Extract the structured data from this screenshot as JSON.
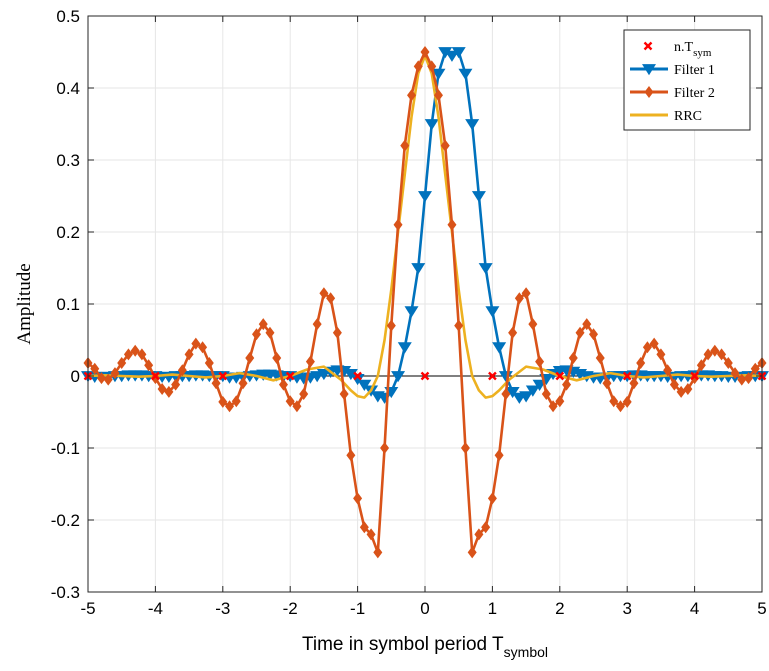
{
  "chart_data": {
    "type": "line",
    "xlabel": "Time in symbol period T",
    "xlabel_sub": "symbol",
    "ylabel": "Amplitude",
    "xlim": [
      -5,
      5
    ],
    "ylim": [
      -0.3,
      0.5
    ],
    "xticks": [
      -5,
      -4,
      -3,
      -2,
      -1,
      0,
      1,
      2,
      3,
      4,
      5
    ],
    "xtick_labels": [
      "-5",
      "-4",
      "-3",
      "-2",
      "-1",
      "0",
      "1",
      "2",
      "3",
      "4",
      "5"
    ],
    "yticks": [
      -0.3,
      -0.2,
      -0.1,
      0,
      0.1,
      0.2,
      0.3,
      0.4,
      0.5
    ],
    "ytick_labels": [
      "-0.3",
      "-0.2",
      "-0.1",
      "0",
      "0.1",
      "0.2",
      "0.3",
      "0.4",
      "0.5"
    ],
    "grid": true,
    "legend_position": "top-right",
    "legend": [
      {
        "label": "n.T",
        "sub": "sym",
        "color": "#ff0000",
        "marker": "x"
      },
      {
        "label": "Filter 1",
        "color": "#0072bd",
        "marker": "triangle-down"
      },
      {
        "label": "Filter 2",
        "color": "#d95319",
        "marker": "diamond"
      },
      {
        "label": "RRC",
        "color": "#edb120",
        "marker": "none"
      }
    ],
    "series": [
      {
        "name": "n.T_sym",
        "color": "#ff0000",
        "style": "markers",
        "marker": "x",
        "x": [
          -5,
          -4,
          -3,
          -2,
          -1,
          0,
          1,
          2,
          3,
          4,
          5
        ],
        "y": [
          0,
          0,
          0,
          0,
          0,
          0,
          0,
          0,
          0,
          0,
          0
        ]
      },
      {
        "name": "Filter 1",
        "color": "#0072bd",
        "style": "line+markers",
        "marker": "triangle-down",
        "x": [
          -5,
          -4.9,
          -4.8,
          -4.7,
          -4.6,
          -4.5,
          -4.4,
          -4.3,
          -4.2,
          -4.1,
          -4,
          -3.9,
          -3.8,
          -3.7,
          -3.6,
          -3.5,
          -3.4,
          -3.3,
          -3.2,
          -3.1,
          -3,
          -2.9,
          -2.8,
          -2.7,
          -2.6,
          -2.5,
          -2.4,
          -2.3,
          -2.2,
          -2.1,
          -2,
          -1.9,
          -1.8,
          -1.7,
          -1.6,
          -1.5,
          -1.4,
          -1.3,
          -1.2,
          -1.1,
          -1,
          -0.9,
          -0.8,
          -0.7,
          -0.6,
          -0.5,
          -0.4,
          -0.3,
          -0.2,
          -0.1,
          0,
          0.1,
          0.2,
          0.3,
          0.4,
          0.5,
          0.6,
          0.7,
          0.8,
          0.9,
          1,
          1.1,
          1.2,
          1.3,
          1.4,
          1.5,
          1.6,
          1.7,
          1.8,
          1.9,
          2,
          2.1,
          2.2,
          2.3,
          2.4,
          2.5,
          2.6,
          2.7,
          2.8,
          2.9,
          3,
          3.1,
          3.2,
          3.3,
          3.4,
          3.5,
          3.6,
          3.7,
          3.8,
          3.9,
          4,
          4.1,
          4.2,
          4.3,
          4.4,
          4.5,
          4.6,
          4.7,
          4.8,
          4.9,
          5
        ],
        "y": [
          0,
          -0.001,
          -0.001,
          -0.001,
          0,
          0,
          0.001,
          0.001,
          0.001,
          0,
          0,
          -0.001,
          -0.001,
          0,
          0,
          0,
          0.001,
          0.001,
          0,
          0,
          0,
          -0.002,
          -0.002,
          -0.001,
          0,
          0.001,
          0.002,
          0.002,
          0.001,
          0,
          0,
          -0.002,
          -0.003,
          -0.002,
          0,
          0.003,
          0.006,
          0.008,
          0.007,
          0.003,
          -0.004,
          -0.012,
          -0.02,
          -0.028,
          -0.03,
          -0.022,
          0,
          0.04,
          0.09,
          0.15,
          0.25,
          0.35,
          0.42,
          0.45,
          0.445,
          0.45,
          0.42,
          0.35,
          0.25,
          0.15,
          0.09,
          0.04,
          0,
          -0.022,
          -0.03,
          -0.028,
          -0.02,
          -0.012,
          -0.004,
          0.003,
          0.007,
          0.008,
          0.006,
          0.003,
          0,
          -0.002,
          -0.003,
          -0.002,
          0,
          0,
          0,
          0.001,
          0.001,
          0,
          0,
          0,
          -0.001,
          -0.001,
          0,
          0,
          0.001,
          0.001,
          0.001,
          0,
          0,
          -0.001,
          -0.001,
          -0.001,
          0,
          0,
          0
        ]
      },
      {
        "name": "Filter 2",
        "color": "#d95319",
        "style": "line+markers",
        "marker": "diamond",
        "x": [
          -5,
          -4.9,
          -4.8,
          -4.7,
          -4.6,
          -4.5,
          -4.4,
          -4.3,
          -4.2,
          -4.1,
          -4,
          -3.9,
          -3.8,
          -3.7,
          -3.6,
          -3.5,
          -3.4,
          -3.3,
          -3.2,
          -3.1,
          -3,
          -2.9,
          -2.8,
          -2.7,
          -2.6,
          -2.5,
          -2.4,
          -2.3,
          -2.2,
          -2.1,
          -2,
          -1.9,
          -1.8,
          -1.7,
          -1.6,
          -1.5,
          -1.4,
          -1.3,
          -1.2,
          -1.1,
          -1,
          -0.9,
          -0.8,
          -0.7,
          -0.6,
          -0.5,
          -0.4,
          -0.3,
          -0.2,
          -0.1,
          0,
          0.1,
          0.2,
          0.3,
          0.4,
          0.5,
          0.6,
          0.7,
          0.8,
          0.9,
          1,
          1.1,
          1.2,
          1.3,
          1.4,
          1.5,
          1.6,
          1.7,
          1.8,
          1.9,
          2,
          2.1,
          2.2,
          2.3,
          2.4,
          2.5,
          2.6,
          2.7,
          2.8,
          2.9,
          3,
          3.1,
          3.2,
          3.3,
          3.4,
          3.5,
          3.6,
          3.7,
          3.8,
          3.9,
          4,
          4.1,
          4.2,
          4.3,
          4.4,
          4.5,
          4.6,
          4.7,
          4.8,
          4.9,
          5
        ],
        "y": [
          0.018,
          0.01,
          -0.003,
          -0.005,
          0.004,
          0.018,
          0.03,
          0.035,
          0.03,
          0.015,
          -0.003,
          -0.018,
          -0.022,
          -0.012,
          0.008,
          0.03,
          0.045,
          0.04,
          0.018,
          -0.01,
          -0.036,
          -0.042,
          -0.035,
          -0.01,
          0.025,
          0.058,
          0.072,
          0.06,
          0.025,
          -0.012,
          -0.035,
          -0.042,
          -0.025,
          0.02,
          0.072,
          0.115,
          0.108,
          0.06,
          -0.025,
          -0.11,
          -0.17,
          -0.21,
          -0.22,
          -0.245,
          -0.1,
          0.07,
          0.21,
          0.32,
          0.39,
          0.43,
          0.45,
          0.43,
          0.39,
          0.32,
          0.21,
          0.07,
          -0.1,
          -0.245,
          -0.22,
          -0.21,
          -0.17,
          -0.11,
          -0.025,
          0.06,
          0.108,
          0.115,
          0.072,
          0.02,
          -0.025,
          -0.042,
          -0.035,
          -0.012,
          0.025,
          0.06,
          0.072,
          0.058,
          0.025,
          -0.01,
          -0.035,
          -0.042,
          -0.036,
          -0.01,
          0.018,
          0.04,
          0.045,
          0.03,
          0.008,
          -0.012,
          -0.022,
          -0.018,
          -0.003,
          0.015,
          0.03,
          0.035,
          0.03,
          0.018,
          0.004,
          -0.005,
          -0.003,
          0.01,
          0.018
        ]
      },
      {
        "name": "RRC",
        "color": "#edb120",
        "style": "line",
        "marker": "none",
        "x": [
          -5,
          -4.75,
          -4.5,
          -4.25,
          -4,
          -3.75,
          -3.5,
          -3.25,
          -3,
          -2.75,
          -2.5,
          -2.25,
          -2,
          -1.75,
          -1.5,
          -1.25,
          -1.1,
          -1,
          -0.9,
          -0.8,
          -0.7,
          -0.6,
          -0.5,
          -0.4,
          -0.3,
          -0.2,
          -0.1,
          0,
          0.1,
          0.2,
          0.3,
          0.4,
          0.5,
          0.6,
          0.7,
          0.8,
          0.9,
          1,
          1.1,
          1.25,
          1.5,
          1.75,
          2,
          2.25,
          2.5,
          2.75,
          3,
          3.25,
          3.5,
          3.75,
          4,
          4.25,
          4.5,
          4.75,
          5
        ],
        "y": [
          0,
          0.001,
          0,
          -0.001,
          0,
          0.002,
          0,
          -0.002,
          0,
          0.004,
          0,
          -0.006,
          0,
          0.009,
          0.013,
          -0.005,
          -0.02,
          -0.028,
          -0.03,
          -0.02,
          0,
          0.05,
          0.12,
          0.2,
          0.28,
          0.36,
          0.42,
          0.445,
          0.42,
          0.36,
          0.28,
          0.2,
          0.12,
          0.05,
          0,
          -0.02,
          -0.03,
          -0.028,
          -0.02,
          -0.005,
          0.013,
          0.009,
          0,
          -0.006,
          0,
          0.004,
          0,
          -0.002,
          0,
          0.002,
          0,
          -0.001,
          0,
          0.001,
          0
        ]
      }
    ]
  }
}
